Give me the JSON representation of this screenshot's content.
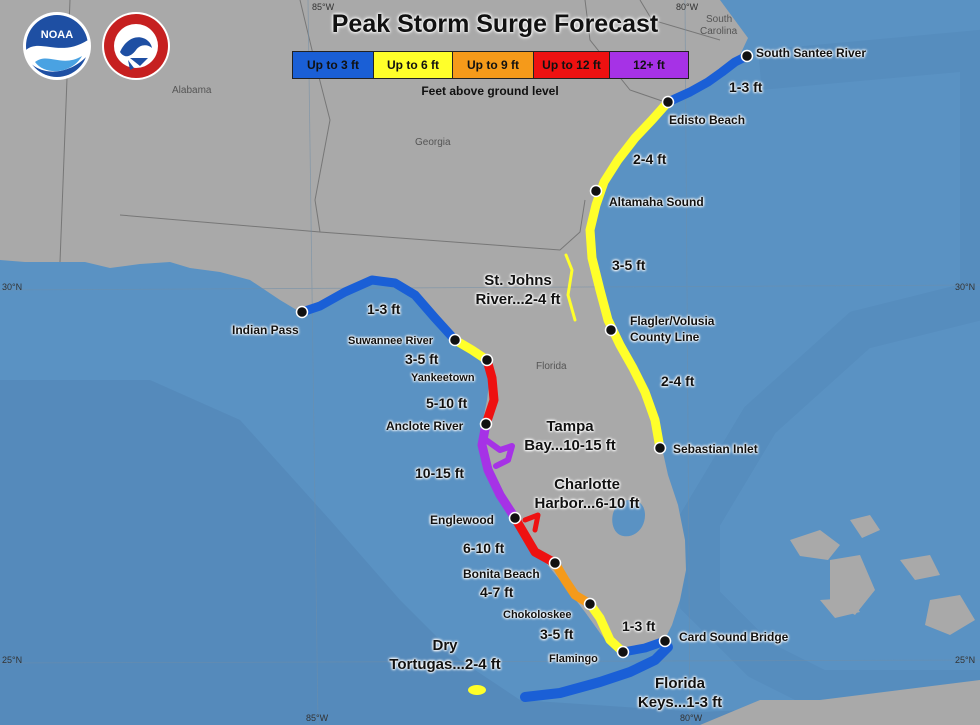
{
  "title": "Peak Storm Surge Forecast",
  "legend": {
    "items": [
      {
        "label": "Up to 3 ft",
        "color": "#1a5fd6"
      },
      {
        "label": "Up to 6 ft",
        "color": "#ffff2a"
      },
      {
        "label": "Up to 9 ft",
        "color": "#f59a1a"
      },
      {
        "label": "Up to 12 ft",
        "color": "#ee1111"
      },
      {
        "label": "12+ ft",
        "color": "#a632e6"
      }
    ],
    "note": "Feet above ground level"
  },
  "logos": {
    "noaa": "NOAA",
    "nws": "NATIONAL WEATHER SERVICE"
  },
  "states": {
    "alabama": "Alabama",
    "georgia": "Georgia",
    "florida": "Florida",
    "south_carolina_1": "South",
    "south_carolina_2": "Carolina"
  },
  "coords": {
    "lon85_top": "85°W",
    "lon80_top": "80°W",
    "lon85_bottom": "85°W",
    "lon80_bottom": "80°W",
    "lat30_left": "30°N",
    "lat30_right": "30°N",
    "lat25_left": "25°N",
    "lat25_right": "25°N"
  },
  "places": {
    "south_santee": "South Santee River",
    "edisto": "Edisto Beach",
    "altamaha": "Altamaha Sound",
    "flagler_1": "Flagler/Volusia",
    "flagler_2": "County Line",
    "sebastian": "Sebastian Inlet",
    "card_sound": "Card Sound Bridge",
    "indian_pass": "Indian Pass",
    "suwannee": "Suwannee River",
    "yankeetown": "Yankeetown",
    "anclote": "Anclote River",
    "englewood": "Englewood",
    "bonita": "Bonita Beach",
    "chokoloskee": "Chokoloskee",
    "flamingo": "Flamingo"
  },
  "surge": {
    "sc_13": "1-3 ft",
    "ga_24": "2-4 ft",
    "fl_35": "3-5 ft",
    "fl_24": "2-4 ft",
    "stjohns_1": "St. Johns",
    "stjohns_2": "River...2-4 ft",
    "pan_13": "1-3 ft",
    "big_bend_35": "3-5 ft",
    "nature_510": "5-10 ft",
    "tampa_1": "Tampa",
    "tampa_2": "Bay...10-15 ft",
    "pinellas_1015": "10-15 ft",
    "charlotte_1": "Charlotte",
    "charlotte_2": "Harbor...6-10 ft",
    "sw_610": "6-10 ft",
    "bonita_47": "4-7 ft",
    "everglades_35": "3-5 ft",
    "bay_13": "1-3 ft",
    "dry_1": "Dry",
    "dry_2": "Tortugas...2-4 ft",
    "keys_1": "Florida",
    "keys_2": "Keys...1-3 ft"
  }
}
